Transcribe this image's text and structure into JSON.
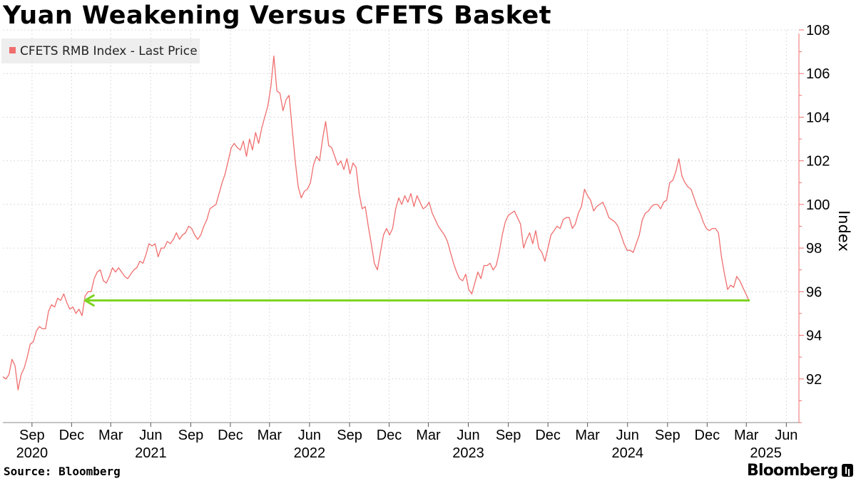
{
  "title": "Yuan Weakening Versus CFETS Basket",
  "source": "Source: Bloomberg",
  "brand": "Bloomberg",
  "colors": {
    "series": "#f06e6e",
    "axis": "#f06e6e",
    "annotation_arrow": "#7dd321",
    "legend_bg": "#eeeeee"
  },
  "chart_data": {
    "type": "line",
    "title": "Yuan Weakening Versus CFETS Basket",
    "ylabel": "Index",
    "ylim": [
      90,
      108
    ],
    "yticks": [
      92,
      94,
      96,
      98,
      100,
      102,
      104,
      106,
      108
    ],
    "xlim": [
      "2020-06-26",
      "2025-06-30"
    ],
    "x_month_ticks": [
      {
        "label": "Sep",
        "date": "2020-09-01"
      },
      {
        "label": "Dec",
        "date": "2020-12-01"
      },
      {
        "label": "Mar",
        "date": "2021-03-01"
      },
      {
        "label": "Jun",
        "date": "2021-06-01"
      },
      {
        "label": "Sep",
        "date": "2021-09-01"
      },
      {
        "label": "Dec",
        "date": "2021-12-01"
      },
      {
        "label": "Mar",
        "date": "2022-03-01"
      },
      {
        "label": "Jun",
        "date": "2022-06-01"
      },
      {
        "label": "Sep",
        "date": "2022-09-01"
      },
      {
        "label": "Dec",
        "date": "2022-12-01"
      },
      {
        "label": "Mar",
        "date": "2023-03-01"
      },
      {
        "label": "Jun",
        "date": "2023-06-01"
      },
      {
        "label": "Sep",
        "date": "2023-09-01"
      },
      {
        "label": "Dec",
        "date": "2023-12-01"
      },
      {
        "label": "Mar",
        "date": "2024-03-01"
      },
      {
        "label": "Jun",
        "date": "2024-06-01"
      },
      {
        "label": "Sep",
        "date": "2024-09-01"
      },
      {
        "label": "Dec",
        "date": "2024-12-01"
      },
      {
        "label": "Mar",
        "date": "2025-03-01"
      },
      {
        "label": "Jun",
        "date": "2025-06-01"
      }
    ],
    "x_year_labels": [
      {
        "label": "2020",
        "date": "2020-09-01"
      },
      {
        "label": "2021",
        "date": "2021-06-01"
      },
      {
        "label": "2022",
        "date": "2022-06-01"
      },
      {
        "label": "2023",
        "date": "2023-06-01"
      },
      {
        "label": "2024",
        "date": "2024-06-01"
      },
      {
        "label": "2025",
        "date": "2025-04-15"
      }
    ],
    "series": [
      {
        "name": "CFETS RMB Index - Last Price",
        "color": "#f06e6e",
        "points": [
          [
            "2020-06-26",
            92.1
          ],
          [
            "2020-07-03",
            92.0
          ],
          [
            "2020-07-10",
            92.2
          ],
          [
            "2020-07-17",
            92.9
          ],
          [
            "2020-07-24",
            92.6
          ],
          [
            "2020-07-31",
            91.5
          ],
          [
            "2020-08-07",
            92.2
          ],
          [
            "2020-08-14",
            92.5
          ],
          [
            "2020-08-21",
            93.0
          ],
          [
            "2020-08-28",
            93.6
          ],
          [
            "2020-09-04",
            93.7
          ],
          [
            "2020-09-11",
            94.2
          ],
          [
            "2020-09-18",
            94.4
          ],
          [
            "2020-09-25",
            94.3
          ],
          [
            "2020-10-02",
            94.3
          ],
          [
            "2020-10-09",
            95.1
          ],
          [
            "2020-10-16",
            95.4
          ],
          [
            "2020-10-23",
            95.3
          ],
          [
            "2020-10-30",
            95.7
          ],
          [
            "2020-11-06",
            95.6
          ],
          [
            "2020-11-13",
            95.9
          ],
          [
            "2020-11-20",
            95.5
          ],
          [
            "2020-11-27",
            95.2
          ],
          [
            "2020-12-04",
            95.3
          ],
          [
            "2020-12-11",
            95.0
          ],
          [
            "2020-12-18",
            95.2
          ],
          [
            "2020-12-25",
            94.9
          ],
          [
            "2021-01-01",
            95.8
          ],
          [
            "2021-01-08",
            96.0
          ],
          [
            "2021-01-15",
            96.0
          ],
          [
            "2021-01-22",
            96.6
          ],
          [
            "2021-01-29",
            96.9
          ],
          [
            "2021-02-05",
            97.0
          ],
          [
            "2021-02-12",
            96.5
          ],
          [
            "2021-02-19",
            96.4
          ],
          [
            "2021-02-26",
            96.7
          ],
          [
            "2021-03-05",
            97.1
          ],
          [
            "2021-03-12",
            96.9
          ],
          [
            "2021-03-19",
            97.1
          ],
          [
            "2021-03-26",
            96.9
          ],
          [
            "2021-04-02",
            96.7
          ],
          [
            "2021-04-09",
            96.6
          ],
          [
            "2021-04-16",
            96.8
          ],
          [
            "2021-04-23",
            97.0
          ],
          [
            "2021-04-30",
            97.1
          ],
          [
            "2021-05-07",
            97.4
          ],
          [
            "2021-05-14",
            97.3
          ],
          [
            "2021-05-21",
            97.7
          ],
          [
            "2021-05-28",
            98.2
          ],
          [
            "2021-06-04",
            98.1
          ],
          [
            "2021-06-11",
            98.2
          ],
          [
            "2021-06-18",
            97.6
          ],
          [
            "2021-06-25",
            98.0
          ],
          [
            "2021-07-02",
            98.0
          ],
          [
            "2021-07-09",
            98.3
          ],
          [
            "2021-07-16",
            98.2
          ],
          [
            "2021-07-23",
            98.4
          ],
          [
            "2021-07-30",
            98.7
          ],
          [
            "2021-08-06",
            98.4
          ],
          [
            "2021-08-13",
            98.6
          ],
          [
            "2021-08-20",
            98.7
          ],
          [
            "2021-08-27",
            99.0
          ],
          [
            "2021-09-03",
            98.9
          ],
          [
            "2021-09-10",
            98.6
          ],
          [
            "2021-09-17",
            98.4
          ],
          [
            "2021-09-24",
            98.6
          ],
          [
            "2021-10-01",
            99.0
          ],
          [
            "2021-10-08",
            99.3
          ],
          [
            "2021-10-15",
            99.8
          ],
          [
            "2021-10-22",
            99.9
          ],
          [
            "2021-10-29",
            100.0
          ],
          [
            "2021-11-05",
            100.5
          ],
          [
            "2021-11-12",
            101.0
          ],
          [
            "2021-11-19",
            101.4
          ],
          [
            "2021-11-26",
            102.0
          ],
          [
            "2021-12-03",
            102.6
          ],
          [
            "2021-12-10",
            102.8
          ],
          [
            "2021-12-17",
            102.6
          ],
          [
            "2021-12-24",
            102.5
          ],
          [
            "2021-12-31",
            102.9
          ],
          [
            "2022-01-07",
            102.2
          ],
          [
            "2022-01-14",
            103.0
          ],
          [
            "2022-01-21",
            102.5
          ],
          [
            "2022-01-28",
            103.3
          ],
          [
            "2022-02-04",
            102.8
          ],
          [
            "2022-02-11",
            103.5
          ],
          [
            "2022-02-18",
            104.0
          ],
          [
            "2022-02-25",
            104.5
          ],
          [
            "2022-03-04",
            105.4
          ],
          [
            "2022-03-11",
            106.8
          ],
          [
            "2022-03-18",
            105.2
          ],
          [
            "2022-03-25",
            105.1
          ],
          [
            "2022-04-01",
            104.3
          ],
          [
            "2022-04-08",
            104.8
          ],
          [
            "2022-04-15",
            105.0
          ],
          [
            "2022-04-22",
            103.5
          ],
          [
            "2022-04-29",
            102.0
          ],
          [
            "2022-05-06",
            100.8
          ],
          [
            "2022-05-13",
            100.3
          ],
          [
            "2022-05-20",
            100.6
          ],
          [
            "2022-05-27",
            100.7
          ],
          [
            "2022-06-03",
            101.0
          ],
          [
            "2022-06-10",
            101.8
          ],
          [
            "2022-06-17",
            102.2
          ],
          [
            "2022-06-24",
            102.0
          ],
          [
            "2022-07-01",
            103.0
          ],
          [
            "2022-07-08",
            103.8
          ],
          [
            "2022-07-15",
            102.7
          ],
          [
            "2022-07-22",
            102.6
          ],
          [
            "2022-07-29",
            102.2
          ],
          [
            "2022-08-05",
            101.8
          ],
          [
            "2022-08-12",
            102.0
          ],
          [
            "2022-08-19",
            101.6
          ],
          [
            "2022-08-26",
            102.1
          ],
          [
            "2022-09-02",
            101.4
          ],
          [
            "2022-09-09",
            101.9
          ],
          [
            "2022-09-16",
            101.7
          ],
          [
            "2022-09-23",
            100.5
          ],
          [
            "2022-09-30",
            99.8
          ],
          [
            "2022-10-07",
            99.9
          ],
          [
            "2022-10-14",
            99.0
          ],
          [
            "2022-10-21",
            98.2
          ],
          [
            "2022-10-28",
            97.3
          ],
          [
            "2022-11-04",
            97.0
          ],
          [
            "2022-11-11",
            97.8
          ],
          [
            "2022-11-18",
            98.6
          ],
          [
            "2022-11-25",
            98.9
          ],
          [
            "2022-12-02",
            98.6
          ],
          [
            "2022-12-09",
            98.9
          ],
          [
            "2022-12-16",
            99.8
          ],
          [
            "2022-12-23",
            100.3
          ],
          [
            "2022-12-30",
            100.0
          ],
          [
            "2023-01-06",
            100.4
          ],
          [
            "2023-01-13",
            100.1
          ],
          [
            "2023-01-20",
            100.5
          ],
          [
            "2023-01-27",
            99.9
          ],
          [
            "2023-02-03",
            100.4
          ],
          [
            "2023-02-10",
            100.1
          ],
          [
            "2023-02-17",
            99.8
          ],
          [
            "2023-02-24",
            99.9
          ],
          [
            "2023-03-03",
            100.1
          ],
          [
            "2023-03-10",
            99.6
          ],
          [
            "2023-03-17",
            99.3
          ],
          [
            "2023-03-24",
            99.0
          ],
          [
            "2023-03-31",
            98.8
          ],
          [
            "2023-04-07",
            98.6
          ],
          [
            "2023-04-14",
            98.3
          ],
          [
            "2023-04-21",
            97.8
          ],
          [
            "2023-04-28",
            97.3
          ],
          [
            "2023-05-05",
            96.9
          ],
          [
            "2023-05-12",
            96.6
          ],
          [
            "2023-05-19",
            96.5
          ],
          [
            "2023-05-26",
            96.8
          ],
          [
            "2023-06-02",
            96.1
          ],
          [
            "2023-06-09",
            95.9
          ],
          [
            "2023-06-16",
            96.4
          ],
          [
            "2023-06-23",
            96.9
          ],
          [
            "2023-06-30",
            96.6
          ],
          [
            "2023-07-07",
            97.2
          ],
          [
            "2023-07-14",
            97.2
          ],
          [
            "2023-07-21",
            97.3
          ],
          [
            "2023-07-28",
            97.0
          ],
          [
            "2023-08-04",
            97.2
          ],
          [
            "2023-08-11",
            97.8
          ],
          [
            "2023-08-18",
            98.6
          ],
          [
            "2023-08-25",
            99.2
          ],
          [
            "2023-09-01",
            99.5
          ],
          [
            "2023-09-08",
            99.6
          ],
          [
            "2023-09-15",
            99.7
          ],
          [
            "2023-09-22",
            99.4
          ],
          [
            "2023-09-29",
            99.1
          ],
          [
            "2023-10-06",
            98.0
          ],
          [
            "2023-10-13",
            98.4
          ],
          [
            "2023-10-20",
            98.7
          ],
          [
            "2023-10-27",
            98.2
          ],
          [
            "2023-11-03",
            98.8
          ],
          [
            "2023-11-10",
            98.0
          ],
          [
            "2023-11-17",
            97.8
          ],
          [
            "2023-11-24",
            97.4
          ],
          [
            "2023-12-01",
            98.0
          ],
          [
            "2023-12-08",
            98.6
          ],
          [
            "2023-12-15",
            98.8
          ],
          [
            "2023-12-22",
            99.0
          ],
          [
            "2023-12-29",
            98.9
          ],
          [
            "2024-01-05",
            99.3
          ],
          [
            "2024-01-12",
            99.4
          ],
          [
            "2024-01-19",
            99.4
          ],
          [
            "2024-01-26",
            98.9
          ],
          [
            "2024-02-02",
            99.1
          ],
          [
            "2024-02-09",
            99.6
          ],
          [
            "2024-02-16",
            99.9
          ],
          [
            "2024-02-23",
            100.7
          ],
          [
            "2024-03-01",
            100.4
          ],
          [
            "2024-03-08",
            100.2
          ],
          [
            "2024-03-15",
            99.7
          ],
          [
            "2024-03-22",
            99.9
          ],
          [
            "2024-03-29",
            100.0
          ],
          [
            "2024-04-05",
            100.1
          ],
          [
            "2024-04-12",
            99.8
          ],
          [
            "2024-04-19",
            99.4
          ],
          [
            "2024-04-26",
            99.3
          ],
          [
            "2024-05-03",
            99.2
          ],
          [
            "2024-05-10",
            99.0
          ],
          [
            "2024-05-17",
            98.6
          ],
          [
            "2024-05-24",
            98.2
          ],
          [
            "2024-05-31",
            97.9
          ],
          [
            "2024-06-07",
            97.9
          ],
          [
            "2024-06-14",
            97.8
          ],
          [
            "2024-06-21",
            98.2
          ],
          [
            "2024-06-28",
            98.6
          ],
          [
            "2024-07-05",
            99.3
          ],
          [
            "2024-07-12",
            99.6
          ],
          [
            "2024-07-19",
            99.7
          ],
          [
            "2024-07-26",
            99.9
          ],
          [
            "2024-08-02",
            100.0
          ],
          [
            "2024-08-09",
            100.0
          ],
          [
            "2024-08-16",
            99.8
          ],
          [
            "2024-08-23",
            100.1
          ],
          [
            "2024-08-30",
            100.2
          ],
          [
            "2024-09-06",
            101.0
          ],
          [
            "2024-09-13",
            101.1
          ],
          [
            "2024-09-20",
            101.5
          ],
          [
            "2024-09-27",
            102.1
          ],
          [
            "2024-10-04",
            101.3
          ],
          [
            "2024-10-11",
            101.0
          ],
          [
            "2024-10-18",
            100.8
          ],
          [
            "2024-10-25",
            100.7
          ],
          [
            "2024-11-01",
            100.3
          ],
          [
            "2024-11-08",
            99.9
          ],
          [
            "2024-11-15",
            99.6
          ],
          [
            "2024-11-22",
            99.2
          ],
          [
            "2024-11-29",
            98.9
          ],
          [
            "2024-12-06",
            98.8
          ],
          [
            "2024-12-13",
            98.9
          ],
          [
            "2024-12-20",
            98.9
          ],
          [
            "2024-12-27",
            98.7
          ],
          [
            "2025-01-03",
            97.6
          ],
          [
            "2025-01-10",
            96.8
          ],
          [
            "2025-01-17",
            96.1
          ],
          [
            "2025-01-24",
            96.3
          ],
          [
            "2025-01-31",
            96.2
          ],
          [
            "2025-02-07",
            96.7
          ],
          [
            "2025-02-14",
            96.5
          ],
          [
            "2025-02-21",
            96.2
          ],
          [
            "2025-02-28",
            95.9
          ],
          [
            "2025-03-07",
            95.6
          ]
        ]
      }
    ],
    "annotations": [
      {
        "type": "arrow",
        "from": [
          "2025-03-07",
          95.6
        ],
        "to": [
          "2021-01-01",
          95.6
        ],
        "color": "#7dd321"
      }
    ]
  }
}
